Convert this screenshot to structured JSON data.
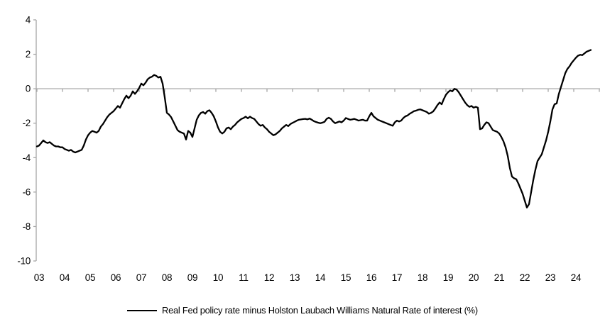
{
  "chart_data": {
    "type": "line",
    "title": "",
    "legend": "Real Fed policy rate minus Holston Laubach Williams Natural Rate of interest (%)",
    "frequency": "monthly",
    "x_start": "2003-01",
    "x_end": "2024-09",
    "x_tick_labels": [
      "03",
      "04",
      "05",
      "06",
      "07",
      "08",
      "09",
      "10",
      "11",
      "12",
      "13",
      "14",
      "15",
      "16",
      "17",
      "18",
      "19",
      "20",
      "21",
      "22",
      "23",
      "24"
    ],
    "ylim": [
      -10,
      4
    ],
    "yticks": [
      4,
      2,
      0,
      -2,
      -4,
      -6,
      -8,
      -10
    ],
    "grid": "none",
    "legend_position": "bottom-center",
    "colors": {
      "line": "#000000",
      "axis": "#a6a6a6",
      "text": "#000000"
    },
    "series": [
      {
        "name": "Real Fed policy rate minus Holston Laubach Williams Natural Rate of interest (%)",
        "values": [
          -3.35,
          -3.3,
          -3.15,
          -3.0,
          -3.1,
          -3.15,
          -3.1,
          -3.2,
          -3.3,
          -3.35,
          -3.35,
          -3.4,
          -3.4,
          -3.5,
          -3.55,
          -3.6,
          -3.55,
          -3.65,
          -3.7,
          -3.65,
          -3.6,
          -3.55,
          -3.3,
          -2.95,
          -2.7,
          -2.55,
          -2.45,
          -2.5,
          -2.55,
          -2.45,
          -2.2,
          -2.05,
          -1.85,
          -1.65,
          -1.5,
          -1.4,
          -1.3,
          -1.15,
          -1.0,
          -1.1,
          -0.85,
          -0.6,
          -0.4,
          -0.55,
          -0.4,
          -0.15,
          -0.3,
          -0.15,
          0.05,
          0.3,
          0.2,
          0.35,
          0.55,
          0.65,
          0.7,
          0.8,
          0.75,
          0.65,
          0.7,
          0.3,
          -0.5,
          -1.4,
          -1.5,
          -1.65,
          -1.9,
          -2.15,
          -2.4,
          -2.5,
          -2.55,
          -2.6,
          -2.95,
          -2.45,
          -2.55,
          -2.8,
          -2.3,
          -1.8,
          -1.55,
          -1.4,
          -1.35,
          -1.45,
          -1.3,
          -1.25,
          -1.4,
          -1.6,
          -1.9,
          -2.25,
          -2.5,
          -2.6,
          -2.5,
          -2.3,
          -2.25,
          -2.35,
          -2.2,
          -2.1,
          -1.95,
          -1.85,
          -1.75,
          -1.7,
          -1.62,
          -1.72,
          -1.62,
          -1.7,
          -1.75,
          -1.9,
          -2.05,
          -2.15,
          -2.1,
          -2.25,
          -2.35,
          -2.5,
          -2.6,
          -2.7,
          -2.65,
          -2.55,
          -2.45,
          -2.3,
          -2.2,
          -2.1,
          -2.17,
          -2.05,
          -1.98,
          -1.92,
          -1.85,
          -1.8,
          -1.78,
          -1.76,
          -1.75,
          -1.78,
          -1.73,
          -1.8,
          -1.88,
          -1.93,
          -1.97,
          -2.0,
          -1.97,
          -1.92,
          -1.75,
          -1.68,
          -1.75,
          -1.9,
          -2.0,
          -1.95,
          -1.9,
          -1.95,
          -1.85,
          -1.7,
          -1.75,
          -1.8,
          -1.78,
          -1.75,
          -1.8,
          -1.85,
          -1.82,
          -1.8,
          -1.85,
          -1.85,
          -1.6,
          -1.4,
          -1.6,
          -1.7,
          -1.8,
          -1.85,
          -1.9,
          -1.95,
          -2.0,
          -2.05,
          -2.1,
          -2.15,
          -1.95,
          -1.85,
          -1.9,
          -1.85,
          -1.7,
          -1.6,
          -1.55,
          -1.45,
          -1.38,
          -1.3,
          -1.27,
          -1.22,
          -1.2,
          -1.25,
          -1.3,
          -1.35,
          -1.45,
          -1.4,
          -1.32,
          -1.15,
          -0.95,
          -0.8,
          -0.9,
          -0.6,
          -0.35,
          -0.2,
          -0.1,
          -0.15,
          0.0,
          -0.05,
          -0.2,
          -0.4,
          -0.6,
          -0.8,
          -0.95,
          -1.05,
          -1.0,
          -1.1,
          -1.05,
          -1.1,
          -2.35,
          -2.3,
          -2.1,
          -1.95,
          -2.0,
          -2.2,
          -2.4,
          -2.45,
          -2.5,
          -2.6,
          -2.8,
          -3.05,
          -3.4,
          -3.9,
          -4.6,
          -5.1,
          -5.2,
          -5.25,
          -5.5,
          -5.8,
          -6.1,
          -6.5,
          -6.9,
          -6.7,
          -6.0,
          -5.3,
          -4.7,
          -4.2,
          -4.0,
          -3.8,
          -3.4,
          -3.0,
          -2.5,
          -1.9,
          -1.2,
          -0.9,
          -0.85,
          -0.3,
          0.1,
          0.5,
          0.9,
          1.15,
          1.3,
          1.5,
          1.65,
          1.8,
          1.92,
          1.97,
          1.95,
          2.05,
          2.15,
          2.2,
          2.25
        ]
      }
    ]
  }
}
